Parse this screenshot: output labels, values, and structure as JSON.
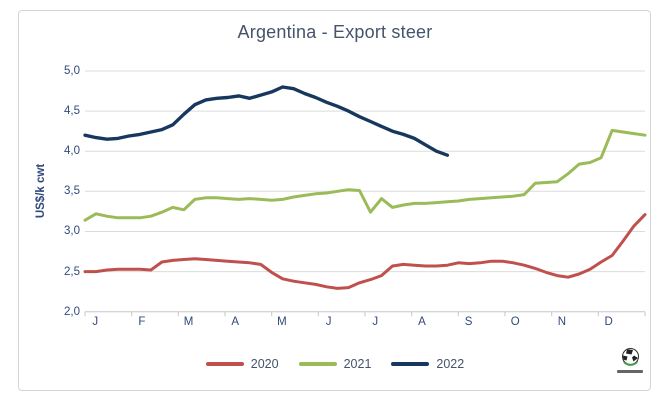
{
  "chart_data": {
    "type": "line",
    "title": "Argentina - Export steer",
    "ylabel": "US$/k cwt",
    "xlabel": "",
    "ylim": [
      2.0,
      5.0
    ],
    "y_tick_labels": [
      "5,0",
      "4,5",
      "4,0",
      "3,5",
      "3,0",
      "2,5",
      "2,0"
    ],
    "x_tick_labels": [
      "J",
      "F",
      "M",
      "A",
      "M",
      "J",
      "J",
      "A",
      "S",
      "O",
      "N",
      "D"
    ],
    "x_axis_note": "months Jan-Dec, weekly data points",
    "grid": true,
    "legend_position": "bottom",
    "colors": {
      "grid": "#dcdcdc",
      "axis": "#c6c6c6",
      "axis_text": "#31497A",
      "title_text": "#44546A"
    },
    "series": [
      {
        "name": "2020",
        "color": "#C0504D",
        "values": [
          2.5,
          2.5,
          2.52,
          2.53,
          2.53,
          2.53,
          2.52,
          2.62,
          2.64,
          2.65,
          2.66,
          2.65,
          2.64,
          2.63,
          2.62,
          2.61,
          2.59,
          2.49,
          2.41,
          2.38,
          2.36,
          2.34,
          2.31,
          2.29,
          2.3,
          2.36,
          2.4,
          2.45,
          2.57,
          2.59,
          2.58,
          2.57,
          2.57,
          2.58,
          2.61,
          2.6,
          2.61,
          2.63,
          2.63,
          2.61,
          2.58,
          2.54,
          2.49,
          2.45,
          2.43,
          2.47,
          2.53,
          2.62,
          2.7,
          2.88,
          3.07,
          3.21
        ]
      },
      {
        "name": "2021",
        "color": "#9BBB59",
        "values": [
          3.14,
          3.22,
          3.19,
          3.17,
          3.17,
          3.17,
          3.19,
          3.24,
          3.3,
          3.27,
          3.4,
          3.42,
          3.42,
          3.41,
          3.4,
          3.41,
          3.4,
          3.39,
          3.4,
          3.43,
          3.45,
          3.47,
          3.48,
          3.5,
          3.52,
          3.51,
          3.24,
          3.41,
          3.3,
          3.33,
          3.35,
          3.35,
          3.36,
          3.37,
          3.38,
          3.4,
          3.41,
          3.42,
          3.43,
          3.44,
          3.46,
          3.6,
          3.61,
          3.62,
          3.72,
          3.84,
          3.86,
          3.92,
          4.26,
          4.24,
          4.22,
          4.2
        ]
      },
      {
        "name": "2022",
        "color": "#17375E",
        "values": [
          4.2,
          4.17,
          4.15,
          4.16,
          4.19,
          4.21,
          4.24,
          4.27,
          4.33,
          4.46,
          4.58,
          4.64,
          4.66,
          4.67,
          4.69,
          4.66,
          4.7,
          4.74,
          4.8,
          4.78,
          4.72,
          4.67,
          4.61,
          4.56,
          4.5,
          4.43,
          4.37,
          4.31,
          4.25,
          4.21,
          4.16,
          4.08,
          4.0,
          3.95
        ]
      }
    ]
  },
  "watermark": {
    "icon": "globe-logo"
  }
}
